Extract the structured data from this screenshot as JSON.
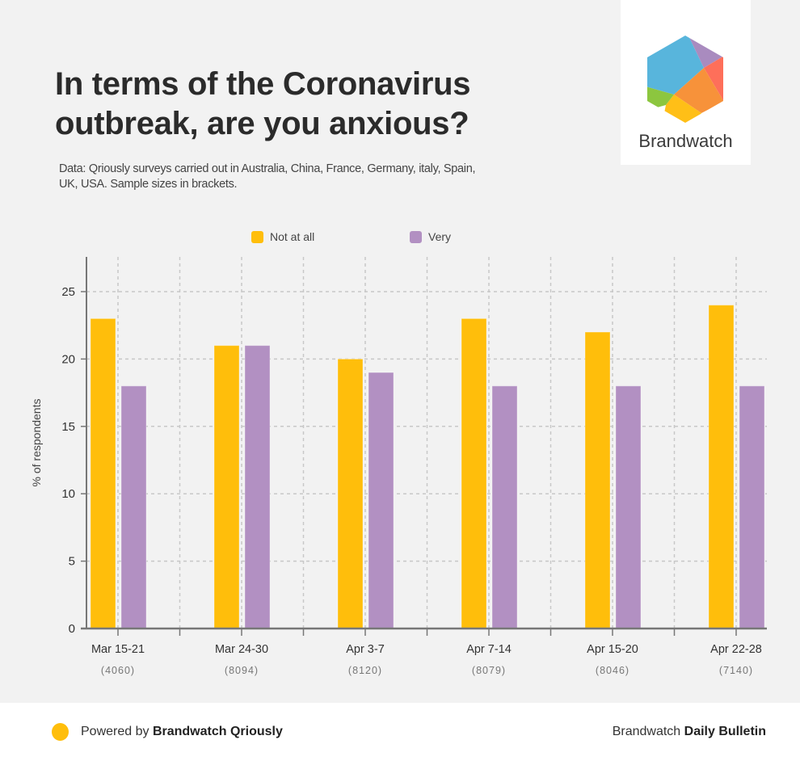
{
  "header": {
    "title": "In terms of the Coronavirus outbreak, are you anxious?",
    "subtitle": "Data: Qriously surveys carried out in Australia, China, France, Germany, italy, Spain, UK, USA. Sample sizes in brackets."
  },
  "logo": {
    "name": "Brandwatch",
    "icon": "hexagon-logo-icon"
  },
  "colors": {
    "not_at_all": "#ffbe0b",
    "very": "#b290c2",
    "background": "#f2f2f2"
  },
  "chart_data": {
    "type": "bar",
    "title": "In terms of the Coronavirus outbreak, are you anxious?",
    "xlabel": "",
    "ylabel": "% of respondents",
    "ylim": [
      0,
      27.5
    ],
    "yticks": [
      0,
      5,
      10,
      15,
      20,
      25
    ],
    "grid": true,
    "legend_position": "top-center",
    "categories": [
      "Mar 15-21",
      "Mar 24-30",
      "Apr 3-7",
      "Apr 7-14",
      "Apr 15-20",
      "Apr 22-28"
    ],
    "sample_sizes": [
      "(4060)",
      "(8094)",
      "(8120)",
      "(8079)",
      "(8046)",
      "(7140)"
    ],
    "series": [
      {
        "name": "Not at all",
        "color": "#ffbe0b",
        "values": [
          23,
          21,
          20,
          23,
          22,
          24
        ]
      },
      {
        "name": "Very",
        "color": "#b290c2",
        "values": [
          18,
          21,
          19,
          18,
          18,
          18
        ]
      }
    ]
  },
  "footer": {
    "left_prefix": "Powered by ",
    "left_bold": "Brandwatch Qriously",
    "right_prefix": "Brandwatch ",
    "right_bold": "Daily Bulletin"
  }
}
